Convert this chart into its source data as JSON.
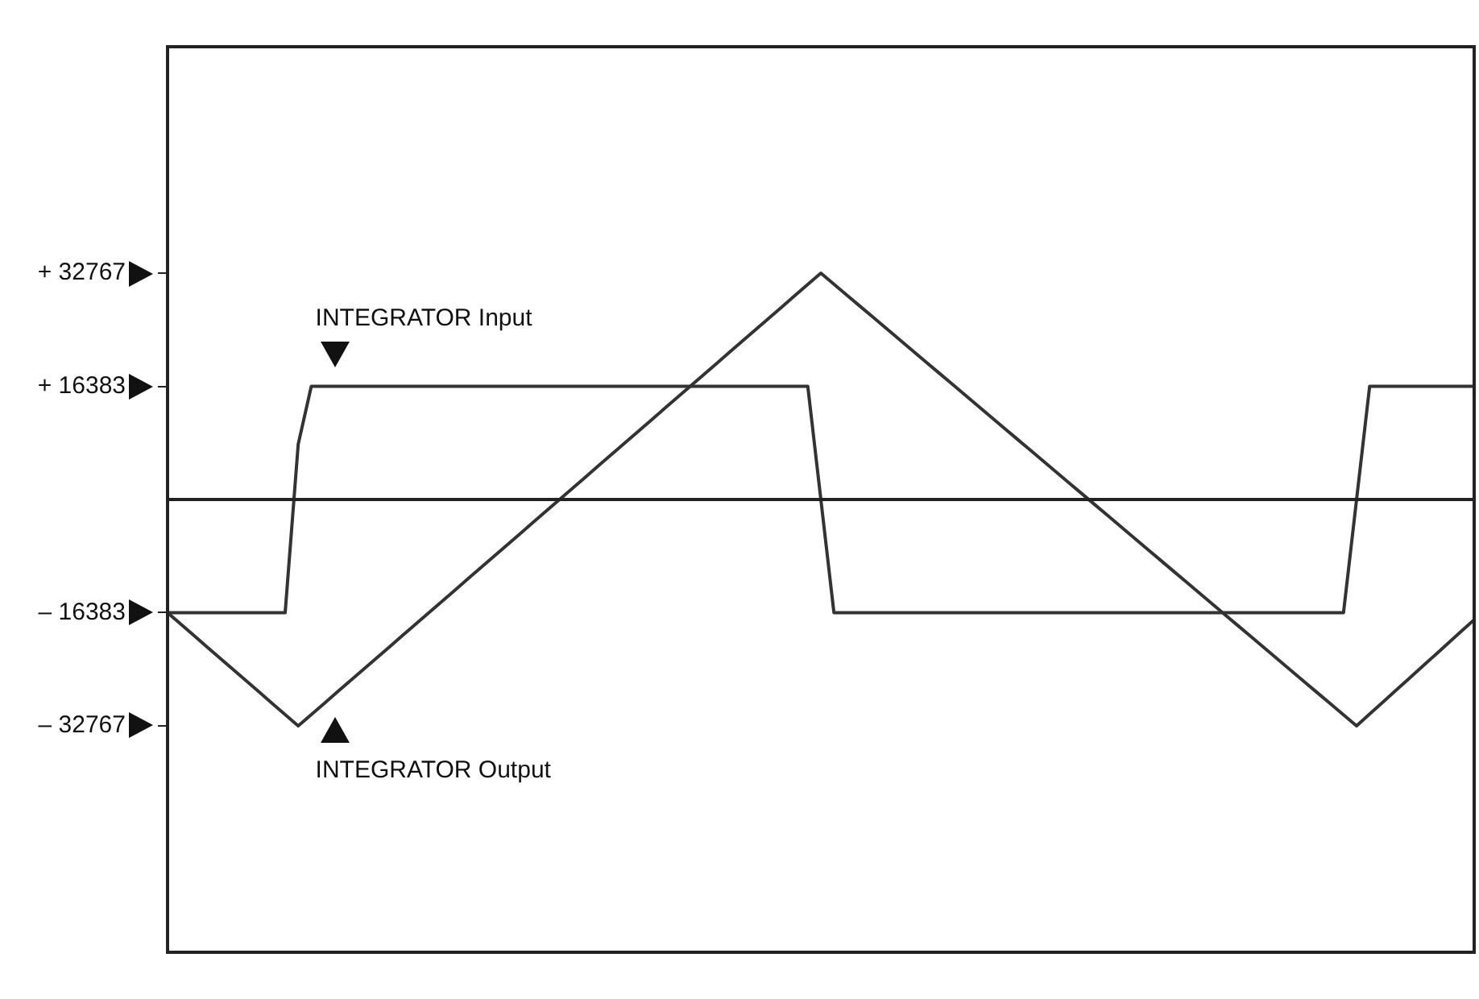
{
  "chart_data": {
    "type": "line",
    "categories": [
      null,
      null,
      null,
      null,
      null,
      null,
      null,
      null,
      null,
      null,
      null,
      null,
      null,
      null,
      null,
      null,
      null,
      null,
      null,
      null,
      null,
      null,
      null,
      null,
      null,
      null,
      null,
      null,
      null,
      null,
      null,
      null,
      null,
      null,
      null,
      null,
      null,
      null,
      null,
      null,
      null,
      null,
      null,
      null,
      null,
      null,
      null,
      null,
      null,
      null,
      null,
      null,
      null,
      null,
      null,
      null,
      null,
      null,
      null,
      null,
      null,
      null,
      null,
      null,
      null,
      null,
      null,
      null,
      null,
      null,
      null,
      null,
      null,
      null,
      null,
      null,
      null,
      null,
      null,
      null,
      null,
      null,
      null,
      null,
      null,
      null,
      null,
      null,
      null,
      null,
      null,
      null,
      null,
      null,
      null,
      null,
      null,
      null,
      null,
      null,
      null
    ],
    "ylim": [
      -65536,
      65536
    ],
    "yticks": [
      {
        "value": 32767,
        "label": "+ 32767"
      },
      {
        "value": 16383,
        "label": "+ 16383"
      },
      {
        "value": -16383,
        "label": "– 16383"
      },
      {
        "value": -32767,
        "label": "– 32767"
      }
    ],
    "tick_labels": "y",
    "grid": false,
    "legend": false,
    "marker": "none",
    "line_style": "solid",
    "series": [
      {
        "color": "#333333",
        "values": [
          -16383,
          -16383,
          -16383,
          -16383,
          -16383,
          -16383,
          -16383,
          -16383,
          -16383,
          -16383,
          8000,
          16383,
          16383,
          16383,
          16383,
          16383,
          16383,
          16383,
          16383,
          16383,
          16383,
          16383,
          16383,
          16383,
          16383,
          16383,
          16383,
          16383,
          16383,
          16383,
          16383,
          16383,
          16383,
          16383,
          16383,
          16383,
          16383,
          16383,
          16383,
          16383,
          16383,
          16383,
          16383,
          16383,
          16383,
          16383,
          16383,
          16383,
          16383,
          16383,
          0,
          -16383,
          -16383,
          -16383,
          -16383,
          -16383,
          -16383,
          -16383,
          -16383,
          -16383,
          -16383,
          -16383,
          -16383,
          -16383,
          -16383,
          -16383,
          -16383,
          -16383,
          -16383,
          -16383,
          -16383,
          -16383,
          -16383,
          -16383,
          -16383,
          -16383,
          -16383,
          -16383,
          -16383,
          -16383,
          -16383,
          -16383,
          -16383,
          -16383,
          -16383,
          -16383,
          -16383,
          -16383,
          -16383,
          -16383,
          -16383,
          0,
          16383,
          16383,
          16383,
          16383,
          16383,
          16383,
          16383,
          16383,
          16383
        ]
      },
      {
        "color": "#333333",
        "values": [
          -16383,
          -18021,
          -19660,
          -21298,
          -22937,
          -24575,
          -26213,
          -27852,
          -29490,
          -31129,
          -32767,
          -31129,
          -29490,
          -27852,
          -26213,
          -24575,
          -22937,
          -21298,
          -19660,
          -18021,
          -16383,
          -14745,
          -13106,
          -11468,
          -9829,
          -8191,
          -6553,
          -4914,
          -3276,
          -1637,
          0,
          1638,
          3277,
          4915,
          6553,
          8192,
          9830,
          11469,
          13107,
          14745,
          16384,
          18022,
          19660,
          21299,
          22937,
          24576,
          26214,
          27852,
          29491,
          31129,
          32767,
          31169,
          29570,
          27972,
          26374,
          24775,
          23177,
          21578,
          19980,
          18381,
          16783,
          15185,
          13586,
          11988,
          10389,
          8791,
          7193,
          5594,
          3996,
          2397,
          799,
          -799,
          -2398,
          -3996,
          -5595,
          -7193,
          -8791,
          -10390,
          -11988,
          -13587,
          -15185,
          -16784,
          -18382,
          -19980,
          -21579,
          -23177,
          -24776,
          -26374,
          -27973,
          -29571,
          -31169,
          -32767,
          -31060,
          -29352,
          -27645,
          -25937,
          -24230,
          -22523,
          -20815,
          -19108,
          -17400
        ]
      }
    ],
    "ref_lines": [
      {
        "axis": "y",
        "value": 0,
        "color": "#222222"
      }
    ],
    "annotations": [
      {
        "text": "INTEGRATOR Input",
        "y": 16383
      },
      "INTEGRATOR Output"
    ]
  }
}
